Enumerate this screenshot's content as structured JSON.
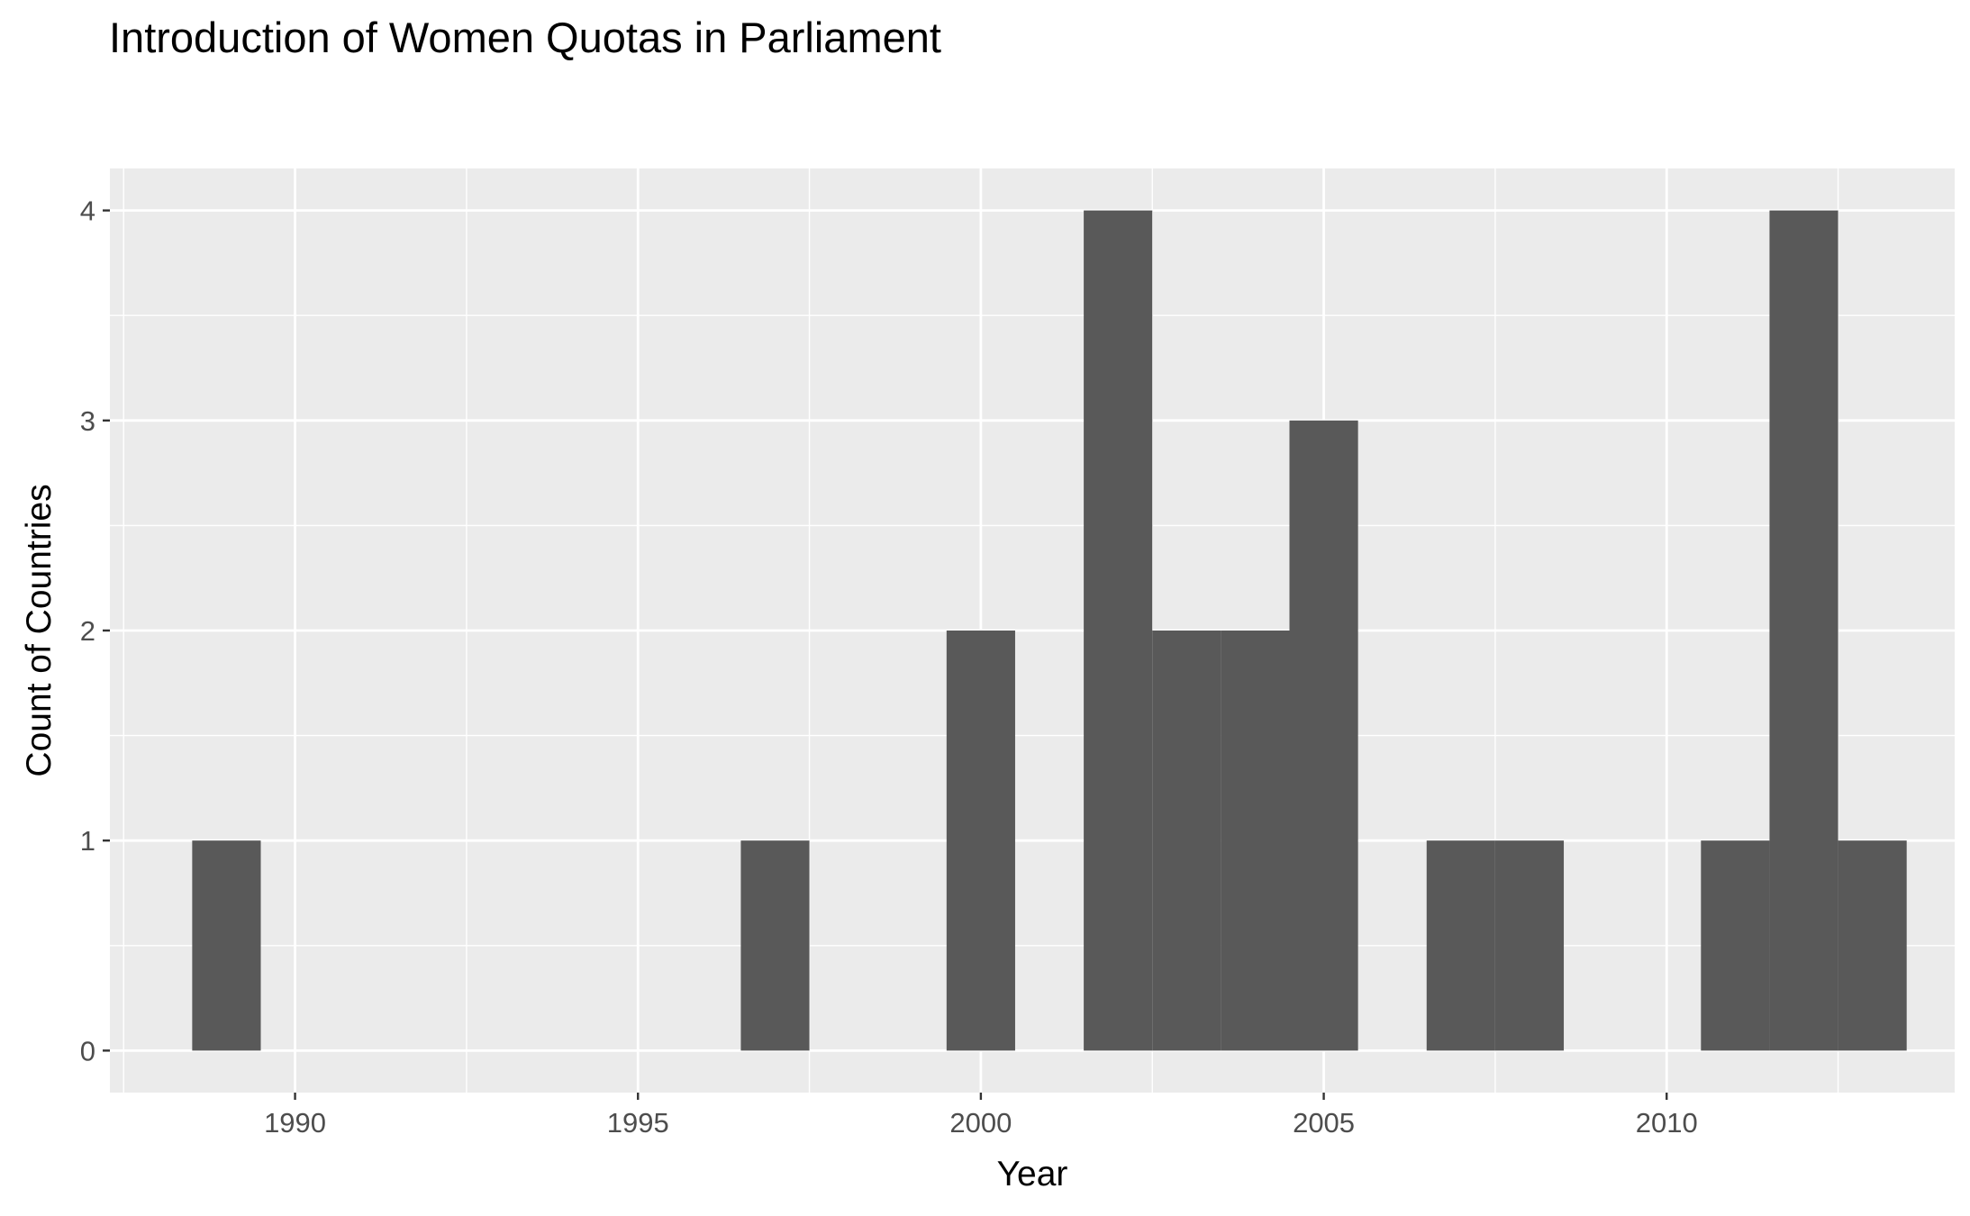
{
  "chart_data": {
    "type": "bar",
    "title": "Introduction of Women Quotas in Parliament",
    "xlabel": "Year",
    "ylabel": "Count of Countries",
    "xlim": [
      1987.3,
      2014.2
    ],
    "ylim": [
      -0.2,
      4.2
    ],
    "x_ticks": [
      1990,
      1995,
      2000,
      2005,
      2010
    ],
    "x_tick_labels": [
      "1990",
      "1995",
      "2000",
      "2005",
      "2010"
    ],
    "y_ticks": [
      0,
      1,
      2,
      3,
      4
    ],
    "y_tick_labels": [
      "0",
      "1",
      "2",
      "3",
      "4"
    ],
    "bin_width": 1,
    "bins": [
      {
        "year": 1989,
        "count": 1
      },
      {
        "year": 1997,
        "count": 1
      },
      {
        "year": 2000,
        "count": 2
      },
      {
        "year": 2002,
        "count": 4
      },
      {
        "year": 2003,
        "count": 2
      },
      {
        "year": 2004,
        "count": 2
      },
      {
        "year": 2005,
        "count": 3
      },
      {
        "year": 2007,
        "count": 1
      },
      {
        "year": 2008,
        "count": 1
      },
      {
        "year": 2011,
        "count": 1
      },
      {
        "year": 2012,
        "count": 4
      },
      {
        "year": 2013,
        "count": 1
      }
    ],
    "grid": true,
    "colors": {
      "panel_background": "#ebebeb",
      "grid": "#ffffff",
      "bar_fill": "#595959",
      "tick_text": "#4d4d4d",
      "tick_mark": "#333333"
    }
  }
}
